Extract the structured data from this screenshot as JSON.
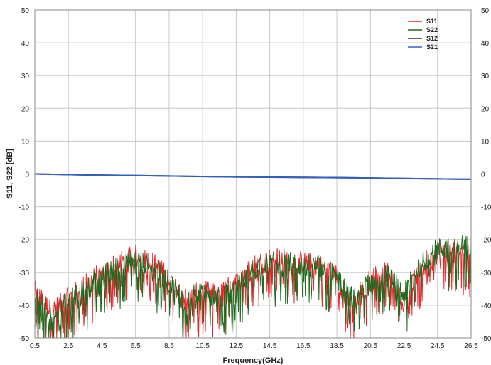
{
  "chart_data": {
    "type": "line",
    "title": "",
    "xlabel": "Frequency(GHz)",
    "ylabel": "S11, S22 [dB]",
    "xlim": [
      0.5,
      26.5
    ],
    "ylim": [
      -50,
      50
    ],
    "x_ticks": [
      "0.5",
      "2.5",
      "4.5",
      "6.5",
      "8.5",
      "10.5",
      "12.5",
      "14.5",
      "16.5",
      "18.5",
      "20.5",
      "22.5",
      "24.5",
      "26.5"
    ],
    "y_ticks": [
      "50",
      "40",
      "30",
      "20",
      "10",
      "0",
      "-10",
      "-20",
      "-30",
      "-40",
      "-50"
    ],
    "y_ticks_right": [
      "50",
      "40",
      "30",
      "20",
      "10",
      "0",
      "-10",
      "-20",
      "-30",
      "-40",
      "-50"
    ],
    "grid": true,
    "legend_position": "top-right",
    "series": [
      {
        "name": "S11",
        "color": "#e8262c",
        "x": [
          0.5,
          1.5,
          2.5,
          3.5,
          4.5,
          5.5,
          6.5,
          7.5,
          8.5,
          9.5,
          10.5,
          11.5,
          12.5,
          13.5,
          14.5,
          15.5,
          16.5,
          17.5,
          18.5,
          19.0,
          19.5,
          20.5,
          21.5,
          22.5,
          23.5,
          24.5,
          25.5,
          26.5
        ],
        "y": [
          -36,
          -42,
          -38,
          -34,
          -30,
          -27,
          -25,
          -27,
          -32,
          -38,
          -36,
          -37,
          -33,
          -28,
          -26,
          -26,
          -27,
          -28,
          -31,
          -37,
          -41,
          -32,
          -30,
          -39,
          -28,
          -24,
          -23,
          -25
        ]
      },
      {
        "name": "S22",
        "color": "#1f6b1f",
        "x": [
          0.5,
          1.5,
          2.5,
          3.5,
          4.5,
          5.5,
          6.5,
          7.5,
          8.5,
          9.5,
          10.5,
          11.5,
          12.5,
          13.5,
          14.5,
          15.5,
          16.5,
          17.5,
          18.5,
          19.0,
          19.5,
          20.5,
          21.5,
          22.5,
          23.5,
          24.5,
          25.5,
          26.5
        ],
        "y": [
          -37,
          -43,
          -39,
          -35,
          -31,
          -28,
          -26,
          -28,
          -33,
          -39,
          -35,
          -38,
          -35,
          -29,
          -27,
          -27,
          -28,
          -28,
          -31,
          -36,
          -38,
          -33,
          -31,
          -37,
          -27,
          -23,
          -22,
          -22
        ]
      },
      {
        "name": "S12",
        "color": "#3a1a55",
        "x": [
          0.5,
          3.5,
          6.5,
          9.5,
          12.5,
          15.5,
          18.5,
          21.5,
          24.5,
          26.5
        ],
        "y": [
          0,
          -0.3,
          -0.5,
          -0.7,
          -0.9,
          -1.0,
          -1.1,
          -1.3,
          -1.5,
          -1.6
        ]
      },
      {
        "name": "S21",
        "color": "#3060c8",
        "x": [
          0.5,
          3.5,
          6.5,
          9.5,
          12.5,
          15.5,
          18.5,
          21.5,
          24.5,
          26.5
        ],
        "y": [
          0,
          -0.3,
          -0.5,
          -0.7,
          -0.9,
          -1.0,
          -1.1,
          -1.3,
          -1.5,
          -1.6
        ]
      }
    ]
  }
}
